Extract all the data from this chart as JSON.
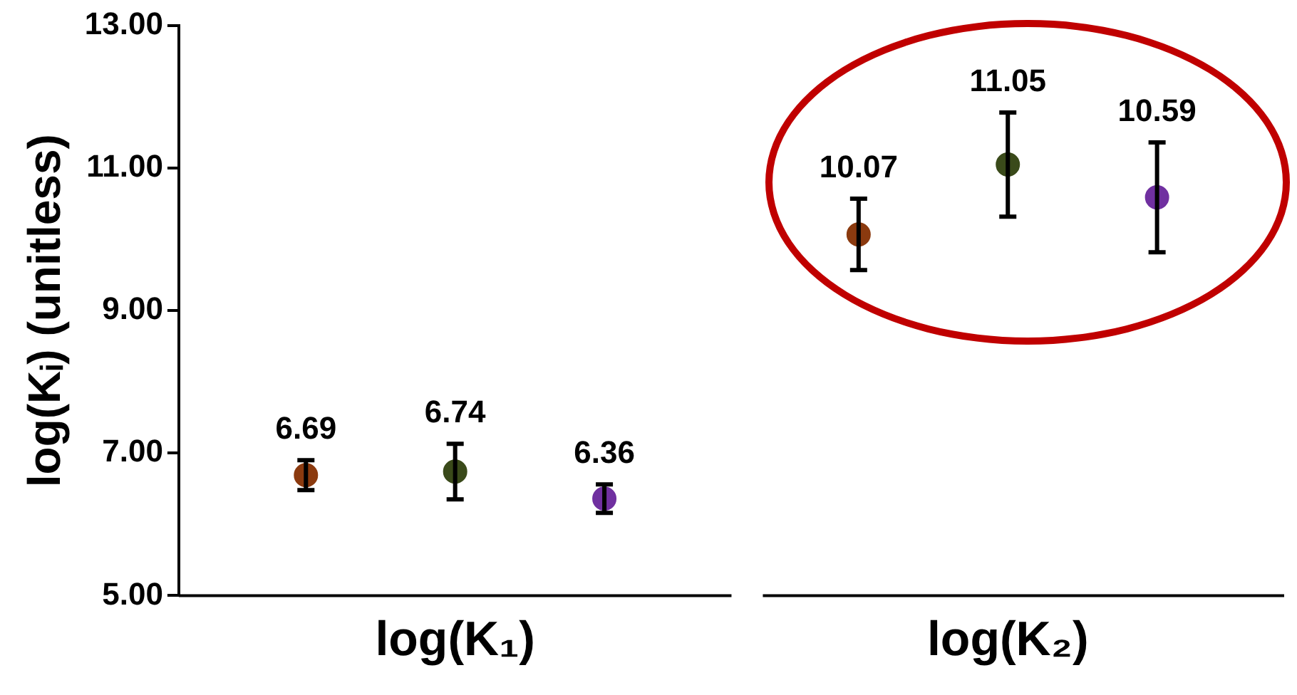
{
  "chart_data": {
    "type": "scatter",
    "ylabel": "log(Kᵢ) (unitless)",
    "categories": [
      "log(K₁)",
      "log(K₂)"
    ],
    "ylim": [
      5,
      13
    ],
    "yticks": [
      {
        "value": 5,
        "label": "5.00"
      },
      {
        "value": 7,
        "label": "7.00"
      },
      {
        "value": 9,
        "label": "9.00"
      },
      {
        "value": 11,
        "label": "11.00"
      },
      {
        "value": 13,
        "label": "13.00"
      }
    ],
    "series": [
      {
        "color": "#8b3a0f",
        "values": [
          6.69,
          10.07
        ],
        "errors": [
          0.21,
          0.5
        ]
      },
      {
        "color": "#3a4a1a",
        "values": [
          6.74,
          11.05
        ],
        "errors": [
          0.39,
          0.73
        ]
      },
      {
        "color": "#7030a0",
        "values": [
          6.36,
          10.59
        ],
        "errors": [
          0.2,
          0.77
        ]
      }
    ],
    "data_labels": true,
    "grid": false,
    "legend": false,
    "marker": "circle"
  }
}
